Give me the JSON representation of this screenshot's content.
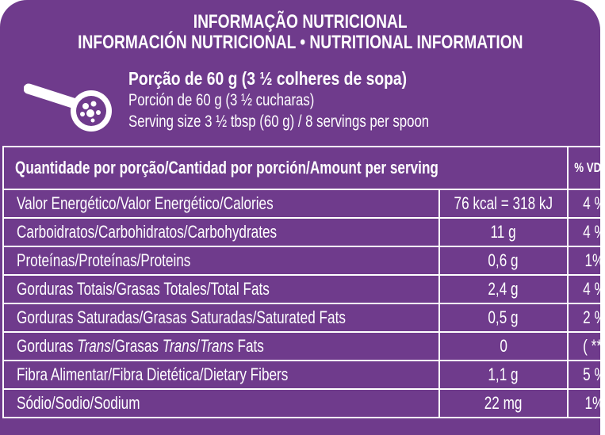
{
  "colors": {
    "panel": "#6f3b8c",
    "text": "#ffffff"
  },
  "title": {
    "pt": "INFORMAÇÃO NUTRICIONAL",
    "es_en": "INFORMACIÓN NUTRICIONAL • NUTRITIONAL INFORMATION"
  },
  "serving": {
    "icon": "spoon-icon",
    "pt": "Porção de 60 g (3 ½ colheres de sopa)",
    "es": "Porción de 60 g (3 ½ cucharas)",
    "en": "Serving size 3 ½ tbsp (60 g) / 8 servings per spoon"
  },
  "table": {
    "header": {
      "amount": "Quantidade por porção/Cantidad por porción/Amount per serving",
      "dv": "% VD (*)"
    },
    "rows": [
      {
        "label": "Valor Energético/Valor Energético/Calories",
        "value": "76 kcal = 318 kJ",
        "dv": "4 %"
      },
      {
        "label": "Carboidratos/Carbohidratos/Carbohydrates",
        "value": "11 g",
        "dv": "4 %"
      },
      {
        "label": "Proteínas/Proteínas/Proteins",
        "value": "0,6 g",
        "dv": "1%"
      },
      {
        "label": "Gorduras Totais/Grasas Totales/Total Fats",
        "value": "2,4 g",
        "dv": "4 %"
      },
      {
        "label": "Gorduras Saturadas/Grasas Saturadas/Saturated Fats",
        "value": "0,5 g",
        "dv": "2 %"
      },
      {
        "label_parts": [
          "Gorduras ",
          "Trans",
          "/Grasas ",
          "Trans",
          "/",
          "Trans",
          " Fats"
        ],
        "value": "0",
        "dv": "( **)"
      },
      {
        "label": "Fibra Alimentar/Fibra Dietética/Dietary Fibers",
        "value": "1,1 g",
        "dv": "5 %"
      },
      {
        "label": "Sódio/Sodio/Sodium",
        "value": "22 mg",
        "dv": "1%"
      }
    ]
  }
}
